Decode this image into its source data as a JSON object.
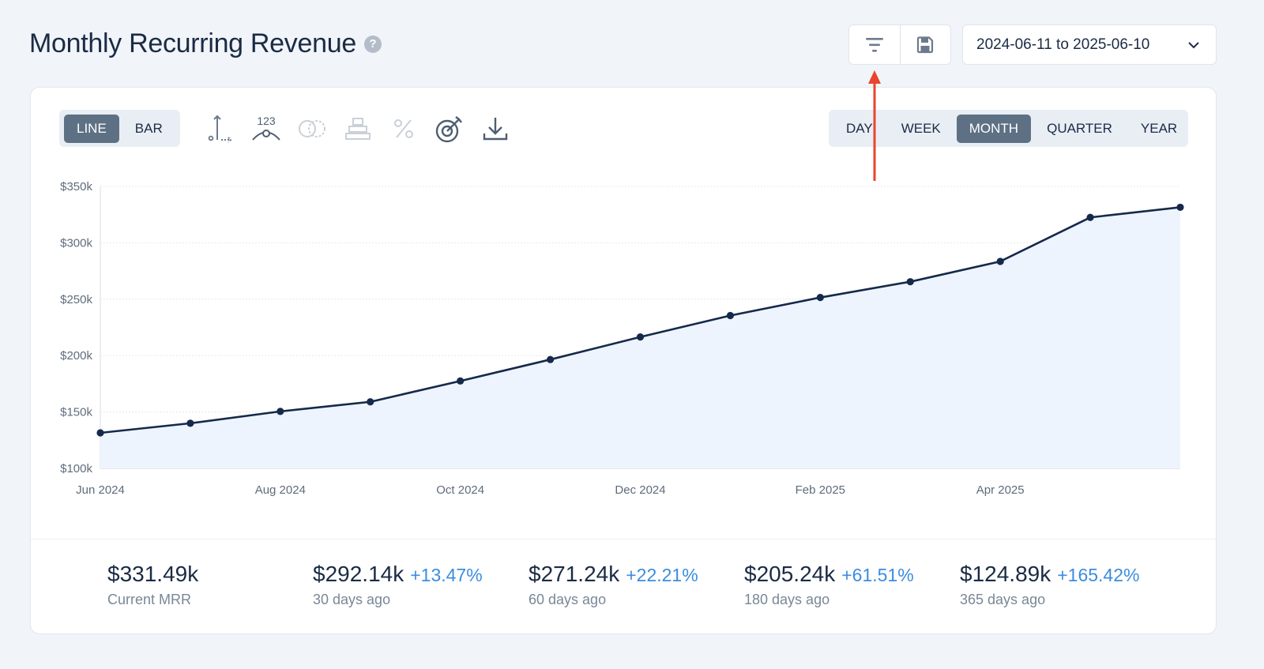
{
  "header": {
    "title": "Monthly Recurring Revenue",
    "help": "?",
    "date_range": "2024-06-11 to 2025-06-10"
  },
  "toolbar": {
    "filter_icon": "filter-icon",
    "save_icon": "save-icon"
  },
  "chart_type_toggle": {
    "line": "LINE",
    "bar": "BAR",
    "active": "LINE"
  },
  "chart_tools": {
    "axis_icon": "axis-icon",
    "labels_icon": "data-labels-icon",
    "labels_text": "123",
    "compare_icon": "compare-icon",
    "stack_icon": "stack-icon",
    "percent_icon": "percent-icon",
    "goal_icon": "goal-target-icon",
    "download_icon": "download-icon"
  },
  "interval": {
    "options": [
      "DAY",
      "WEEK",
      "MONTH",
      "QUARTER",
      "YEAR"
    ],
    "active": "MONTH"
  },
  "colors": {
    "line": "#15294a",
    "fill": "#eef4fd",
    "accent": "#5e7184",
    "positive": "#3b8ce0",
    "arrow": "#e8452c"
  },
  "chart_data": {
    "type": "area",
    "x": [
      "Jun 2024",
      "Jul 2024",
      "Aug 2024",
      "Sep 2024",
      "Oct 2024",
      "Nov 2024",
      "Dec 2024",
      "Jan 2025",
      "Feb 2025",
      "Mar 2025",
      "Apr 2025",
      "May 2025",
      "Jun 2025"
    ],
    "x_tick_labels": [
      "Jun 2024",
      "Aug 2024",
      "Oct 2024",
      "Dec 2024",
      "Feb 2025",
      "Apr 2025"
    ],
    "series": [
      {
        "values": [
          131.5,
          140.0,
          150.5,
          159.0,
          177.5,
          196.5,
          216.5,
          235.5,
          251.5,
          265.5,
          283.5,
          322.5,
          331.5
        ]
      }
    ],
    "y_tick_labels": [
      "$100k",
      "$150k",
      "$200k",
      "$250k",
      "$300k",
      "$350k"
    ],
    "y_ticks": [
      100,
      150,
      200,
      250,
      300,
      350
    ],
    "ylim": [
      100,
      350
    ],
    "grid": true,
    "legend": "none",
    "title": "",
    "xlabel": "",
    "ylabel": ""
  },
  "stats": [
    {
      "value": "$331.49k",
      "change": "",
      "label": "Current MRR"
    },
    {
      "value": "$292.14k",
      "change": "+13.47%",
      "label": "30 days ago"
    },
    {
      "value": "$271.24k",
      "change": "+22.21%",
      "label": "60 days ago"
    },
    {
      "value": "$205.24k",
      "change": "+61.51%",
      "label": "180 days ago"
    },
    {
      "value": "$124.89k",
      "change": "+165.42%",
      "label": "365 days ago"
    }
  ]
}
